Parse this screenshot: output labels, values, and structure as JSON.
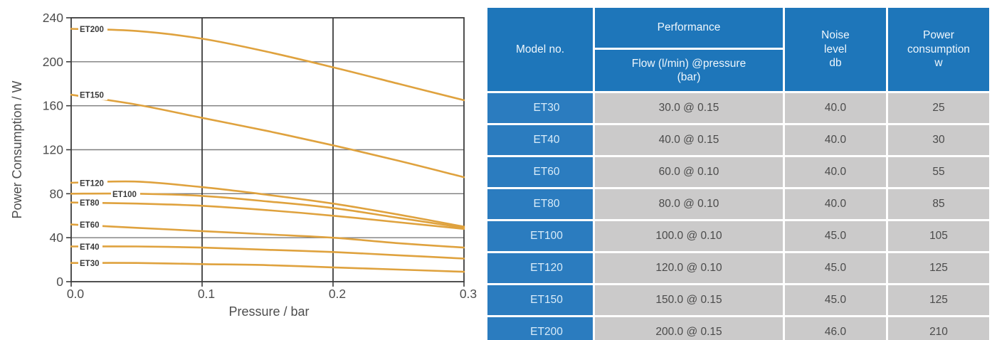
{
  "chart_data": {
    "type": "line",
    "title": "",
    "xlabel": "Pressure / bar",
    "ylabel": "Power Consumption / W",
    "xlim": [
      0,
      0.3
    ],
    "ylim": [
      0,
      240
    ],
    "x_ticks": [
      0.0,
      0.1,
      0.2,
      0.3
    ],
    "y_ticks": [
      0,
      40,
      80,
      120,
      160,
      200,
      240
    ],
    "grid": true,
    "legend_position": "inline-labels",
    "line_color": "#DFA23E",
    "x": [
      0,
      0.05,
      0.1,
      0.15,
      0.2,
      0.25,
      0.3
    ],
    "series": [
      {
        "name": "ET200",
        "values": [
          230,
          228,
          221,
          209,
          195,
          180,
          165
        ],
        "label_dx": 10
      },
      {
        "name": "ET150",
        "values": [
          170,
          161,
          149,
          137,
          124,
          110,
          95
        ],
        "label_dx": 10
      },
      {
        "name": "ET120",
        "values": [
          90,
          91,
          86,
          79,
          71,
          61,
          50
        ],
        "label_dx": 10
      },
      {
        "name": "ET100",
        "values": [
          80,
          80,
          78,
          73,
          67,
          58,
          49
        ],
        "label_dx": 56
      },
      {
        "name": "ET80",
        "values": [
          72,
          71,
          69,
          65,
          60,
          54,
          48
        ],
        "label_dx": 10
      },
      {
        "name": "ET60",
        "values": [
          52,
          49,
          46,
          43,
          40,
          35,
          31
        ],
        "label_dx": 10
      },
      {
        "name": "ET40",
        "values": [
          32,
          32,
          31,
          29,
          27,
          24,
          21
        ],
        "label_dx": 10
      },
      {
        "name": "ET30",
        "values": [
          17,
          17,
          16,
          15,
          13,
          11,
          9
        ],
        "label_dx": 10
      }
    ]
  },
  "chart_colors": {
    "curve": "#DFA23E",
    "grid_minor": "#7c7c7c",
    "grid_major": "#3c3c3c",
    "axis": "#3c3c3c",
    "text": "#4d4d4d",
    "curve_label_text": "#3a3a3a"
  },
  "table": {
    "columns": {
      "model": "Model no.",
      "performance": "Performance",
      "performance_sub": "Flow (l/min) @pressure\n(bar)",
      "noise": "Noise\nlevel\ndb",
      "power": "Power\nconsumption\nw"
    },
    "rows": [
      {
        "model": "ET30",
        "performance": "30.0 @ 0.15",
        "noise": "40.0",
        "power": "25"
      },
      {
        "model": "ET40",
        "performance": "40.0 @ 0.15",
        "noise": "40.0",
        "power": "30"
      },
      {
        "model": "ET60",
        "performance": "60.0 @ 0.10",
        "noise": "40.0",
        "power": "55"
      },
      {
        "model": "ET80",
        "performance": "80.0 @ 0.10",
        "noise": "40.0",
        "power": "85"
      },
      {
        "model": "ET100",
        "performance": "100.0 @ 0.10",
        "noise": "45.0",
        "power": "105"
      },
      {
        "model": "ET120",
        "performance": "120.0 @ 0.10",
        "noise": "45.0",
        "power": "125"
      },
      {
        "model": "ET150",
        "performance": "150.0 @ 0.15",
        "noise": "45.0",
        "power": "125"
      },
      {
        "model": "ET200",
        "performance": "200.0 @ 0.15",
        "noise": "46.0",
        "power": "210"
      }
    ],
    "colors": {
      "header_bg": "#1E76BA",
      "model_cell_bg": "#2B7CBF",
      "model_cell_text": "#D9ECF9",
      "data_cell_bg": "#CBCACA",
      "data_cell_text": "#4b4b4b",
      "separator": "#ffffff"
    }
  }
}
